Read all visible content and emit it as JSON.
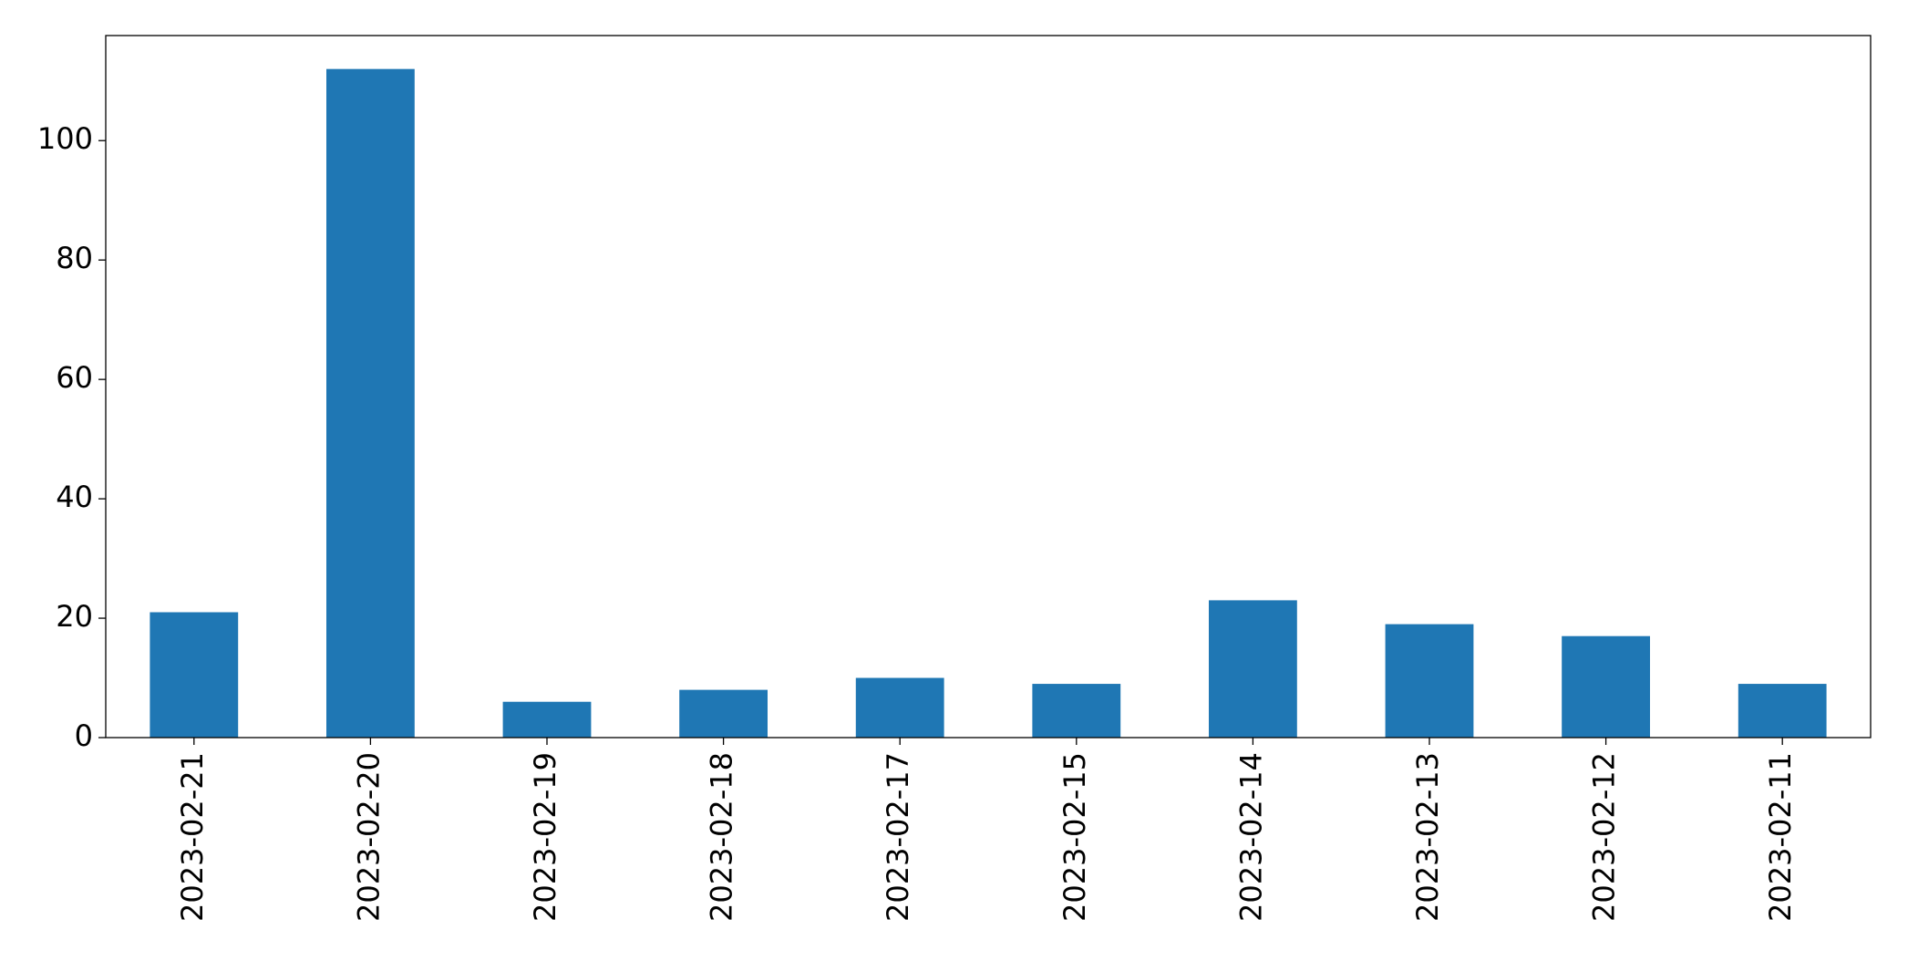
{
  "chart_data": {
    "type": "bar",
    "categories": [
      "2023-02-21",
      "2023-02-20",
      "2023-02-19",
      "2023-02-18",
      "2023-02-17",
      "2023-02-15",
      "2023-02-14",
      "2023-02-13",
      "2023-02-12",
      "2023-02-11"
    ],
    "values": [
      21,
      112,
      6,
      8,
      10,
      9,
      23,
      19,
      17,
      9
    ],
    "color": "#1f77b4",
    "ylim": [
      0,
      117.6
    ],
    "yticks": [
      0,
      20,
      40,
      60,
      80,
      100
    ],
    "grid": false
  }
}
